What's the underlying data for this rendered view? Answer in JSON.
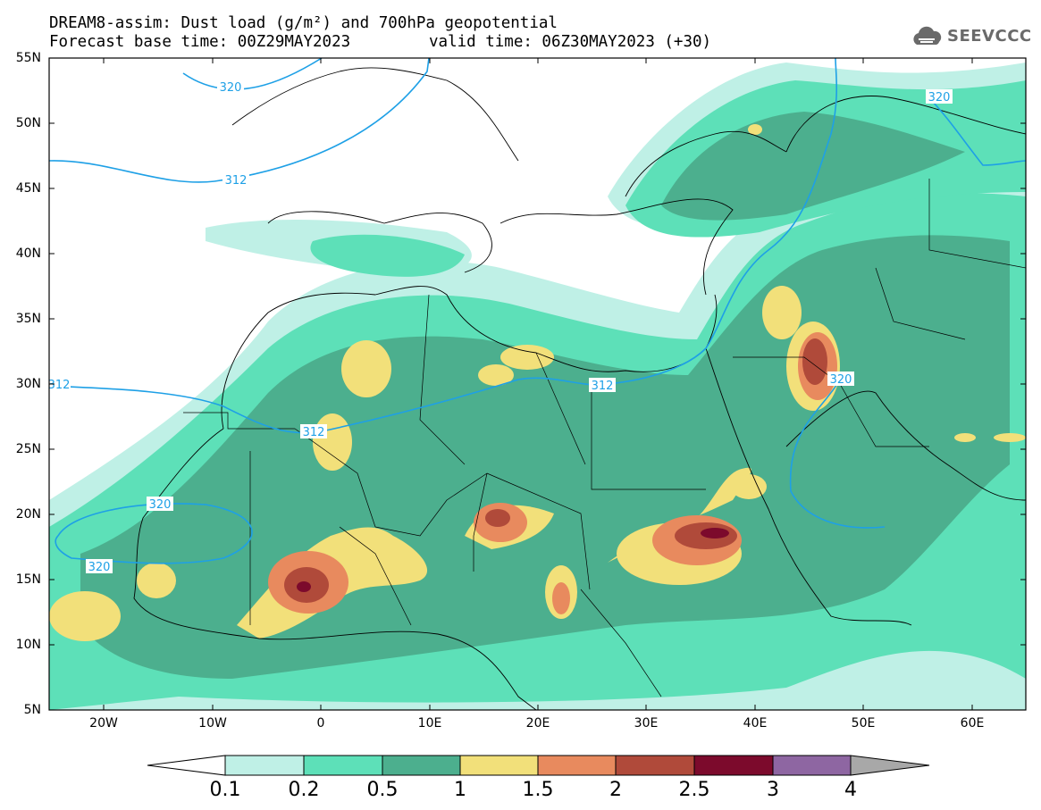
{
  "title": {
    "line1": "DREAM8-assim: Dust load (g/m²) and 700hPa geopotential",
    "line2_left": "Forecast base time: 00Z29MAY2023",
    "line2_right": "valid time: 06Z30MAY2023 (+30)"
  },
  "logo": {
    "text": "SEEVCCC",
    "icon": "cloud-icon"
  },
  "axes": {
    "lat_labels": [
      "55N",
      "50N",
      "45N",
      "40N",
      "35N",
      "30N",
      "25N",
      "20N",
      "15N",
      "10N",
      "5N"
    ],
    "lon_labels": [
      "20W",
      "10W",
      "0",
      "10E",
      "20E",
      "30E",
      "40E",
      "50E",
      "60E"
    ]
  },
  "contour_labels": [
    "320",
    "312",
    "320",
    "312",
    "312",
    "320",
    "320",
    "312",
    "320"
  ],
  "colorbar": {
    "labels": [
      "0.1",
      "0.2",
      "0.5",
      "1",
      "1.5",
      "2",
      "2.5",
      "3",
      "4"
    ],
    "colors": [
      "#ffffff",
      "#bff0e6",
      "#5de0b8",
      "#4caf8e",
      "#f2e07a",
      "#e88a5e",
      "#b04a3a",
      "#7c0a2c",
      "#8e66a2",
      "#a8a8a8"
    ]
  }
}
